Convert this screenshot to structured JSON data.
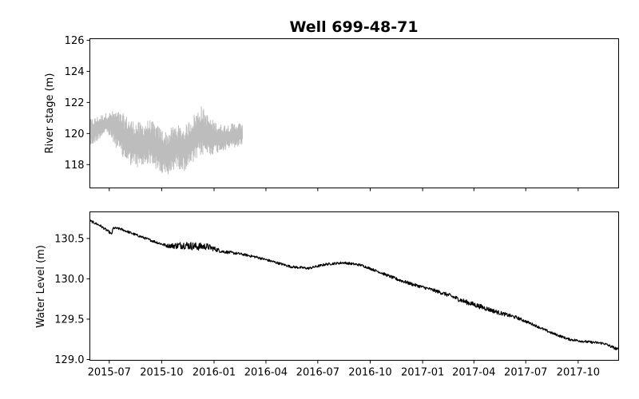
{
  "chart_data": [
    {
      "type": "line",
      "title": "Well 699-48-71",
      "xlabel": "",
      "ylabel": "River stage (m)",
      "ylim": [
        116.5,
        126.1
      ],
      "yticks": [
        118,
        120,
        122,
        124,
        126
      ],
      "xlim": [
        "2015-05-28",
        "2017-12-11"
      ],
      "grid": false,
      "series": [
        {
          "color": "#bdbdbd",
          "style": "noisy",
          "x": [
            "2015-05-28",
            "2015-06-10",
            "2015-06-25",
            "2015-07-10",
            "2015-07-25",
            "2015-08-10",
            "2015-08-25",
            "2015-09-10",
            "2015-09-25",
            "2015-10-10",
            "2015-10-25",
            "2015-11-10",
            "2015-11-25",
            "2015-12-10",
            "2015-12-25",
            "2016-01-10",
            "2016-01-25",
            "2016-02-10",
            "2016-02-20"
          ],
          "y": [
            120.0,
            120.3,
            120.7,
            120.4,
            119.8,
            119.4,
            119.2,
            119.5,
            119.0,
            118.6,
            119.2,
            119.0,
            119.6,
            120.2,
            119.8,
            119.7,
            119.8,
            119.9,
            120.0
          ],
          "amplitude": [
            0.9,
            0.8,
            0.6,
            1.1,
            1.5,
            1.5,
            1.5,
            1.4,
            1.5,
            1.5,
            1.4,
            1.4,
            1.6,
            1.6,
            1.2,
            0.9,
            0.8,
            0.8,
            0.7
          ]
        }
      ]
    },
    {
      "type": "line",
      "title": "",
      "xlabel": "",
      "ylabel": "Water Level (m)",
      "ylim": [
        128.99,
        130.83
      ],
      "yticks": [
        129.0,
        129.5,
        130.0,
        130.5
      ],
      "xlim": [
        "2015-05-28",
        "2017-12-11"
      ],
      "xticks": [
        "2015-07",
        "2015-10",
        "2016-01",
        "2016-04",
        "2016-07",
        "2016-10",
        "2017-01",
        "2017-04",
        "2017-07",
        "2017-10"
      ],
      "grid": false,
      "series": [
        {
          "color": "#000000",
          "style": "noisy-small",
          "x": [
            "2015-05-28",
            "2015-06-15",
            "2015-07-01",
            "2015-07-05",
            "2015-07-08",
            "2015-07-20",
            "2015-08-15",
            "2015-09-15",
            "2015-10-10",
            "2015-10-25",
            "2015-11-10",
            "2015-12-01",
            "2015-12-20",
            "2016-01-15",
            "2016-02-15",
            "2016-03-15",
            "2016-04-15",
            "2016-05-15",
            "2016-06-15",
            "2016-07-15",
            "2016-08-15",
            "2016-09-15",
            "2016-10-15",
            "2016-11-15",
            "2016-12-15",
            "2017-01-15",
            "2017-02-15",
            "2017-03-15",
            "2017-04-15",
            "2017-05-15",
            "2017-06-15",
            "2017-07-15",
            "2017-08-15",
            "2017-09-15",
            "2017-10-15",
            "2017-11-15",
            "2017-12-11"
          ],
          "y": [
            130.72,
            130.66,
            130.58,
            130.55,
            130.63,
            130.62,
            130.55,
            130.47,
            130.41,
            130.41,
            130.42,
            130.4,
            130.4,
            130.34,
            130.31,
            130.27,
            130.21,
            130.15,
            130.13,
            130.18,
            130.2,
            130.17,
            130.09,
            130.0,
            129.93,
            129.87,
            129.8,
            129.72,
            129.65,
            129.58,
            129.52,
            129.43,
            129.33,
            129.25,
            129.22,
            129.2,
            129.12
          ],
          "amplitude": [
            0.015,
            0.015,
            0.015,
            0.015,
            0.015,
            0.015,
            0.015,
            0.015,
            0.02,
            0.04,
            0.05,
            0.05,
            0.04,
            0.02,
            0.015,
            0.015,
            0.015,
            0.015,
            0.015,
            0.015,
            0.015,
            0.015,
            0.015,
            0.02,
            0.02,
            0.02,
            0.025,
            0.03,
            0.03,
            0.025,
            0.02,
            0.015,
            0.015,
            0.015,
            0.015,
            0.015,
            0.02
          ]
        }
      ]
    }
  ]
}
